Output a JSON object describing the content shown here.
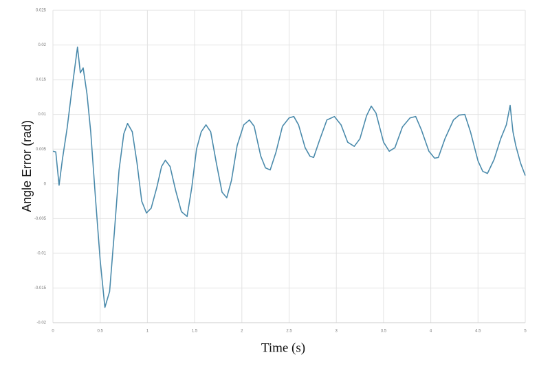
{
  "chart_data": {
    "type": "line",
    "xlabel": "Time (s)",
    "ylabel": "Angle Error (rad)",
    "x": [
      0,
      0.03,
      0.065,
      0.1,
      0.15,
      0.2,
      0.26,
      0.29,
      0.32,
      0.36,
      0.4,
      0.45,
      0.5,
      0.55,
      0.6,
      0.65,
      0.7,
      0.75,
      0.79,
      0.84,
      0.89,
      0.94,
      0.99,
      1.04,
      1.1,
      1.15,
      1.19,
      1.24,
      1.3,
      1.36,
      1.42,
      1.47,
      1.52,
      1.57,
      1.62,
      1.67,
      1.73,
      1.79,
      1.84,
      1.89,
      1.95,
      2.02,
      2.08,
      2.13,
      2.2,
      2.25,
      2.3,
      2.36,
      2.43,
      2.5,
      2.55,
      2.6,
      2.67,
      2.72,
      2.76,
      2.82,
      2.9,
      2.98,
      3.05,
      3.12,
      3.19,
      3.25,
      3.32,
      3.37,
      3.42,
      3.5,
      3.56,
      3.62,
      3.7,
      3.78,
      3.84,
      3.9,
      3.98,
      4.04,
      4.08,
      4.15,
      4.24,
      4.3,
      4.36,
      4.42,
      4.5,
      4.55,
      4.6,
      4.67,
      4.74,
      4.8,
      4.84,
      4.87,
      4.9,
      4.95,
      5.0
    ],
    "series": [
      {
        "name": "Angle Error",
        "color": "#4a8aab",
        "values": [
          0.0047,
          0.0046,
          -0.0002,
          0.0035,
          0.008,
          0.0135,
          0.0197,
          0.016,
          0.0167,
          0.013,
          0.0075,
          -0.002,
          -0.011,
          -0.0178,
          -0.0155,
          -0.007,
          0.002,
          0.0072,
          0.0087,
          0.0075,
          0.003,
          -0.0025,
          -0.0042,
          -0.0035,
          -0.0005,
          0.0025,
          0.0034,
          0.0025,
          -0.001,
          -0.004,
          -0.0047,
          -0.0005,
          0.005,
          0.0075,
          0.0085,
          0.0075,
          0.003,
          -0.0012,
          -0.002,
          0.0005,
          0.0055,
          0.0085,
          0.0092,
          0.0083,
          0.004,
          0.0023,
          0.002,
          0.0045,
          0.0083,
          0.0095,
          0.0097,
          0.0085,
          0.0052,
          0.004,
          0.0038,
          0.0062,
          0.0092,
          0.0097,
          0.0085,
          0.006,
          0.0054,
          0.0065,
          0.0098,
          0.0112,
          0.0102,
          0.006,
          0.0047,
          0.0052,
          0.0082,
          0.0095,
          0.0097,
          0.0078,
          0.0047,
          0.0037,
          0.0038,
          0.0065,
          0.0092,
          0.0099,
          0.01,
          0.0075,
          0.0033,
          0.0018,
          0.0015,
          0.0035,
          0.0065,
          0.0085,
          0.0113,
          0.0075,
          0.0055,
          0.003,
          0.0012
        ]
      }
    ],
    "xlim": [
      0,
      5
    ],
    "xticks": [
      0,
      0.5,
      1,
      1.5,
      2,
      2.5,
      3,
      3.5,
      4,
      4.5,
      5
    ],
    "ylim": [
      -0.02,
      0.025
    ],
    "yticks": [
      -0.02,
      -0.015,
      -0.01,
      -0.005,
      0,
      0.005,
      0.01,
      0.015,
      0.02,
      0.025
    ],
    "grid": true
  }
}
